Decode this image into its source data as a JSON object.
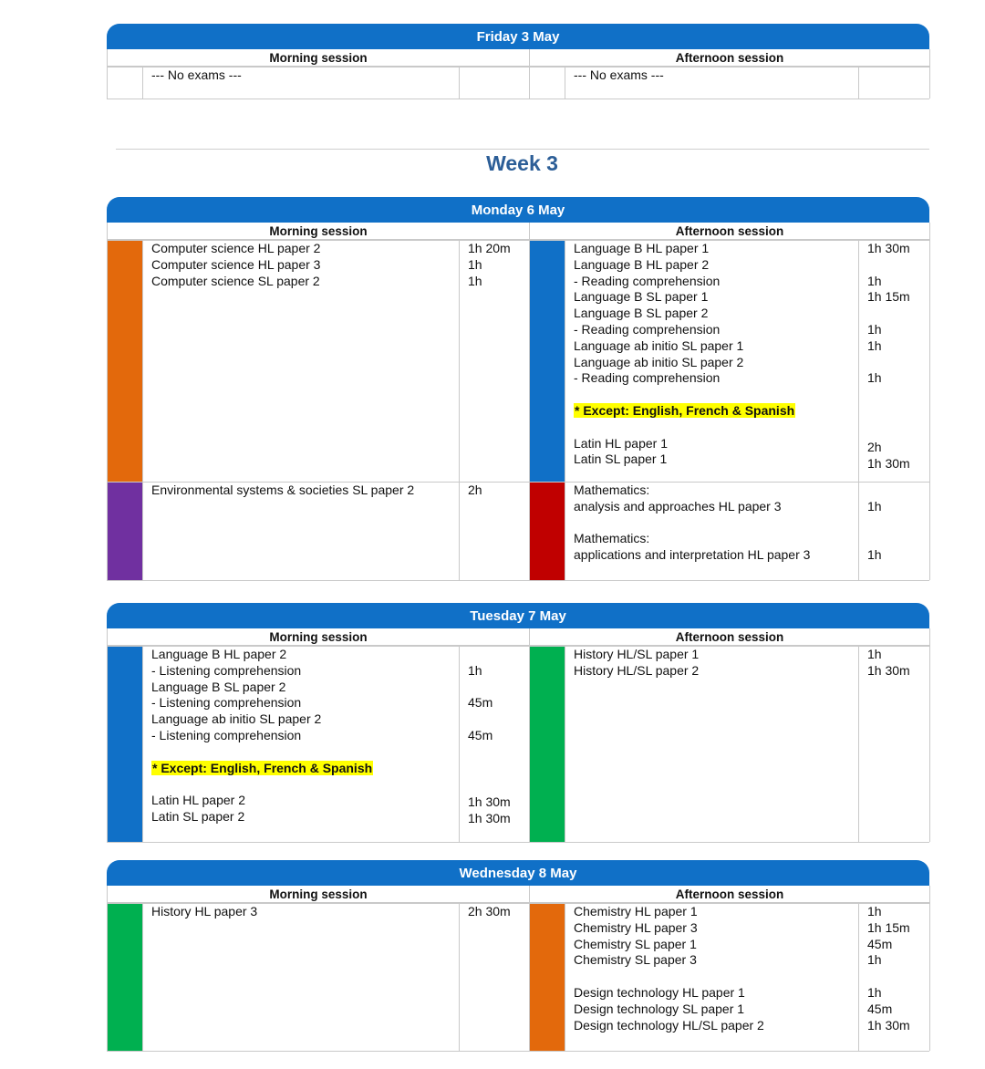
{
  "colors": {
    "header_blue": "#1070c7",
    "orange": "#e3690c",
    "purple": "#7030a0",
    "blue": "#1070c7",
    "red": "#c00000",
    "green": "#00b050",
    "highlight": "#ffff00",
    "week_title": "#2c5e97"
  },
  "labels": {
    "morning": "Morning session",
    "afternoon": "Afternoon session"
  },
  "week_title": "Week 3",
  "friday": {
    "title": "Friday 3 May",
    "morning_text": "--- No exams ---",
    "afternoon_text": "--- No exams ---"
  },
  "monday": {
    "title": "Monday 6 May",
    "row1": {
      "m_color": "orange",
      "m_lines": [
        "Computer science HL paper 2",
        "Computer science HL paper 3",
        "Computer science SL paper 2"
      ],
      "m_durs": [
        "1h 20m",
        "1h",
        "1h"
      ],
      "a_color": "blue",
      "a_lines": [
        "Language B HL paper 1",
        "Language B HL paper 2",
        "- Reading comprehension",
        "Language B SL paper 1",
        "Language B SL paper 2",
        "- Reading comprehension",
        "Language ab initio SL paper 1",
        "Language ab initio SL paper 2",
        "- Reading comprehension"
      ],
      "a_durs": [
        "1h 30m",
        "",
        "1h",
        "1h 15m",
        "",
        "1h",
        "1h",
        "",
        "1h"
      ],
      "except": "* Except: English, French & Spanish",
      "latin_lines": [
        "Latin HL paper 1",
        "Latin SL paper 1"
      ],
      "latin_durs": [
        "2h",
        "1h 30m"
      ]
    },
    "row2": {
      "m_color": "purple",
      "m_lines": [
        "Environmental systems & societies SL paper 2"
      ],
      "m_durs": [
        "2h"
      ],
      "a_color": "red",
      "a_lines": [
        "Mathematics:",
        "analysis and approaches HL paper 3",
        "",
        "Mathematics:",
        "applications and interpretation HL paper 3"
      ],
      "a_durs": [
        "",
        "1h",
        "",
        "",
        "1h"
      ]
    }
  },
  "tuesday": {
    "title": "Tuesday 7 May",
    "m_color": "blue",
    "m_lines": [
      "Language B HL paper 2",
      "- Listening comprehension",
      "Language B SL paper 2",
      "- Listening comprehension",
      "Language ab initio SL paper 2",
      "- Listening comprehension"
    ],
    "m_durs": [
      "",
      "1h",
      "",
      "45m",
      "",
      "45m"
    ],
    "except": "* Except: English, French & Spanish",
    "latin_lines": [
      "Latin HL paper 2",
      "Latin SL paper 2"
    ],
    "latin_durs": [
      "1h 30m",
      "1h 30m"
    ],
    "a_color": "green",
    "a_lines": [
      "History HL/SL paper 1",
      "History HL/SL paper 2"
    ],
    "a_durs": [
      "1h",
      "1h 30m"
    ]
  },
  "wednesday": {
    "title": "Wednesday 8 May",
    "m_color": "green",
    "m_lines": [
      "History HL paper 3"
    ],
    "m_durs": [
      "2h 30m"
    ],
    "a_color": "orange",
    "a_lines": [
      "Chemistry HL paper 1",
      "Chemistry HL paper 3",
      "Chemistry SL paper 1",
      "Chemistry SL paper 3",
      "",
      "Design technology HL paper 1",
      "Design technology SL paper 1",
      "Design technology HL/SL paper 2"
    ],
    "a_durs": [
      "1h",
      "1h 15m",
      "45m",
      "1h",
      "",
      "1h",
      "45m",
      "1h 30m"
    ]
  }
}
